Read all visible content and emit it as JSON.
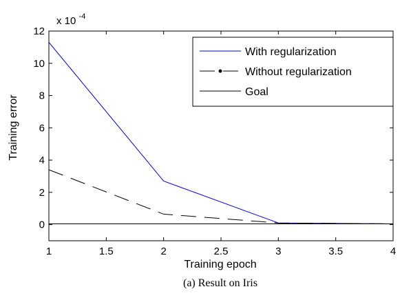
{
  "chart_data": {
    "type": "line",
    "xlabel": "Training epoch",
    "ylabel": "Training error",
    "multiplier": {
      "base": "x 10",
      "exponent": "-4"
    },
    "xlim": [
      1,
      4
    ],
    "ylim": [
      -1,
      12
    ],
    "xticks": [
      1,
      1.5,
      2,
      2.5,
      3,
      3.5,
      4
    ],
    "xtick_labels": [
      "1",
      "1.5",
      "2",
      "2.5",
      "3",
      "3.5",
      "4"
    ],
    "yticks": [
      0,
      2,
      4,
      6,
      8,
      10,
      12
    ],
    "ytick_labels": [
      "0",
      "2",
      "4",
      "6",
      "8",
      "10",
      "12"
    ],
    "grid": false,
    "legend_position": "top-right",
    "x": [
      1,
      2,
      3,
      4
    ],
    "series": [
      {
        "name": "With regularization",
        "values": [
          11.3,
          2.7,
          0.1,
          0.05
        ],
        "color": "#0000ff",
        "style": "solid",
        "marker": "none"
      },
      {
        "name": "Without regularization",
        "values": [
          3.4,
          0.65,
          0.1,
          0.05
        ],
        "color": "#000000",
        "style": "dashed",
        "marker": "dot"
      },
      {
        "name": "Goal",
        "values": [
          0.05,
          0.05,
          0.05,
          0.05
        ],
        "color": "#000000",
        "style": "solid",
        "marker": "none"
      }
    ]
  },
  "caption": "(a) Result on Iris"
}
